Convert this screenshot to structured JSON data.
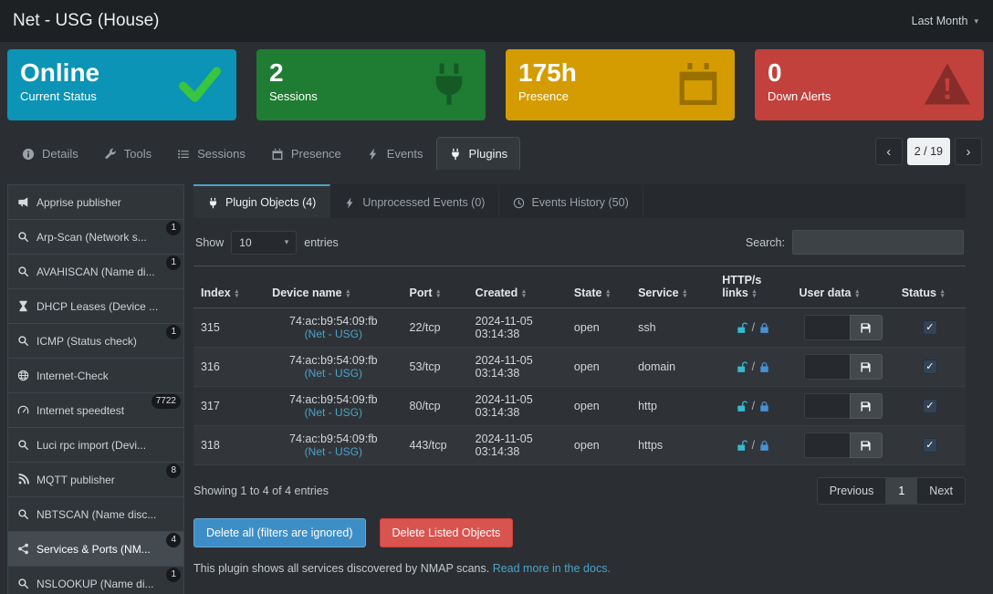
{
  "header": {
    "title": "Net - USG (House)",
    "period": "Last Month"
  },
  "colors": {
    "accent_blue": "#3d8ec6",
    "danger_red": "#d9534f",
    "link": "#4aa3c9",
    "lock_open": "#35b9d0",
    "lock_closed": "#4a90d4",
    "card_online": "#0b94b5",
    "card_sessions": "#1e7d33",
    "card_presence": "#d49c00",
    "card_alerts": "#c2413c"
  },
  "cards": [
    {
      "value": "Online",
      "label": "Current Status",
      "bg": "#0b94b5",
      "icon": "check-icon",
      "icon_color": "#39c53f"
    },
    {
      "value": "2",
      "label": "Sessions",
      "bg": "#1e7d33",
      "icon": "plug-icon",
      "icon_color": "rgba(0,0,0,0.28)"
    },
    {
      "value": "175h",
      "label": "Presence",
      "bg": "#d49c00",
      "icon": "calendar-icon",
      "icon_color": "rgba(0,0,0,0.28)"
    },
    {
      "value": "0",
      "label": "Down Alerts",
      "bg": "#c2413c",
      "icon": "warning-icon",
      "icon_color": "rgba(0,0,0,0.30)"
    }
  ],
  "tabs": [
    {
      "label": "Details",
      "icon": "info-icon",
      "active": false
    },
    {
      "label": "Tools",
      "icon": "wrench-icon",
      "active": false
    },
    {
      "label": "Sessions",
      "icon": "list-icon",
      "active": false
    },
    {
      "label": "Presence",
      "icon": "calendar-icon",
      "active": false
    },
    {
      "label": "Events",
      "icon": "bolt-icon",
      "active": false
    },
    {
      "label": "Plugins",
      "icon": "plug-icon",
      "active": true
    }
  ],
  "pager": {
    "prev": "‹",
    "current": "2 / 19",
    "next": "›"
  },
  "sidebar": [
    {
      "label": "Apprise publisher",
      "icon": "megaphone-icon",
      "badge": "",
      "active": false
    },
    {
      "label": "Arp-Scan (Network s...",
      "icon": "search-icon",
      "badge": "1",
      "active": false
    },
    {
      "label": "AVAHISCAN (Name di...",
      "icon": "search-icon",
      "badge": "1",
      "active": false
    },
    {
      "label": "DHCP Leases (Device ...",
      "icon": "hourglass-icon",
      "badge": "",
      "active": false
    },
    {
      "label": "ICMP (Status check)",
      "icon": "search-icon",
      "badge": "1",
      "active": false
    },
    {
      "label": "Internet-Check",
      "icon": "globe-icon",
      "badge": "",
      "active": false
    },
    {
      "label": "Internet speedtest",
      "icon": "gauge-icon",
      "badge": "7722",
      "active": false
    },
    {
      "label": "Luci rpc import (Devi...",
      "icon": "search-icon",
      "badge": "",
      "active": false
    },
    {
      "label": "MQTT publisher",
      "icon": "mqtt-icon",
      "badge": "8",
      "active": false
    },
    {
      "label": "NBTSCAN (Name disc...",
      "icon": "search-icon",
      "badge": "",
      "active": false
    },
    {
      "label": "Services & Ports (NM...",
      "icon": "network-icon",
      "badge": "4",
      "active": true
    },
    {
      "label": "NSLOOKUP (Name di...",
      "icon": "search-icon",
      "badge": "1",
      "active": false
    }
  ],
  "panel": {
    "tabs": [
      {
        "label": "Plugin Objects (4)",
        "icon": "plug-icon",
        "active": true
      },
      {
        "label": "Unprocessed Events (0)",
        "icon": "bolt-icon",
        "active": false
      },
      {
        "label": "Events History (50)",
        "icon": "clock-icon",
        "active": false
      }
    ],
    "controls": {
      "show": "Show",
      "entries_value": "10",
      "entries": "entries",
      "search": "Search:"
    },
    "table": {
      "headers": [
        "Index",
        "Device name",
        "Port",
        "Created",
        "State",
        "Service",
        "HTTP/s links",
        "User data",
        "Status"
      ],
      "rows": [
        {
          "index": "315",
          "mac": "74:ac:b9:54:09:fb",
          "device": "(Net - USG)",
          "port": "22/tcp",
          "date": "2024-11-05",
          "time": "03:14:38",
          "state": "open",
          "service": "ssh",
          "user_data": "",
          "checked": true
        },
        {
          "index": "316",
          "mac": "74:ac:b9:54:09:fb",
          "device": "(Net - USG)",
          "port": "53/tcp",
          "date": "2024-11-05",
          "time": "03:14:38",
          "state": "open",
          "service": "domain",
          "user_data": "",
          "checked": true
        },
        {
          "index": "317",
          "mac": "74:ac:b9:54:09:fb",
          "device": "(Net - USG)",
          "port": "80/tcp",
          "date": "2024-11-05",
          "time": "03:14:38",
          "state": "open",
          "service": "http",
          "user_data": "",
          "checked": true
        },
        {
          "index": "318",
          "mac": "74:ac:b9:54:09:fb",
          "device": "(Net - USG)",
          "port": "443/tcp",
          "date": "2024-11-05",
          "time": "03:14:38",
          "state": "open",
          "service": "https",
          "user_data": "",
          "checked": true
        }
      ]
    },
    "footer": {
      "showing": "Showing 1 to 4 of 4 entries",
      "prev": "Previous",
      "page": "1",
      "next": "Next"
    },
    "actions": {
      "delete_all": "Delete all (filters are ignored)",
      "delete_listed": "Delete Listed Objects"
    },
    "note": {
      "text": "This plugin shows all services discovered by NMAP scans.",
      "link": "Read more in the docs."
    }
  }
}
